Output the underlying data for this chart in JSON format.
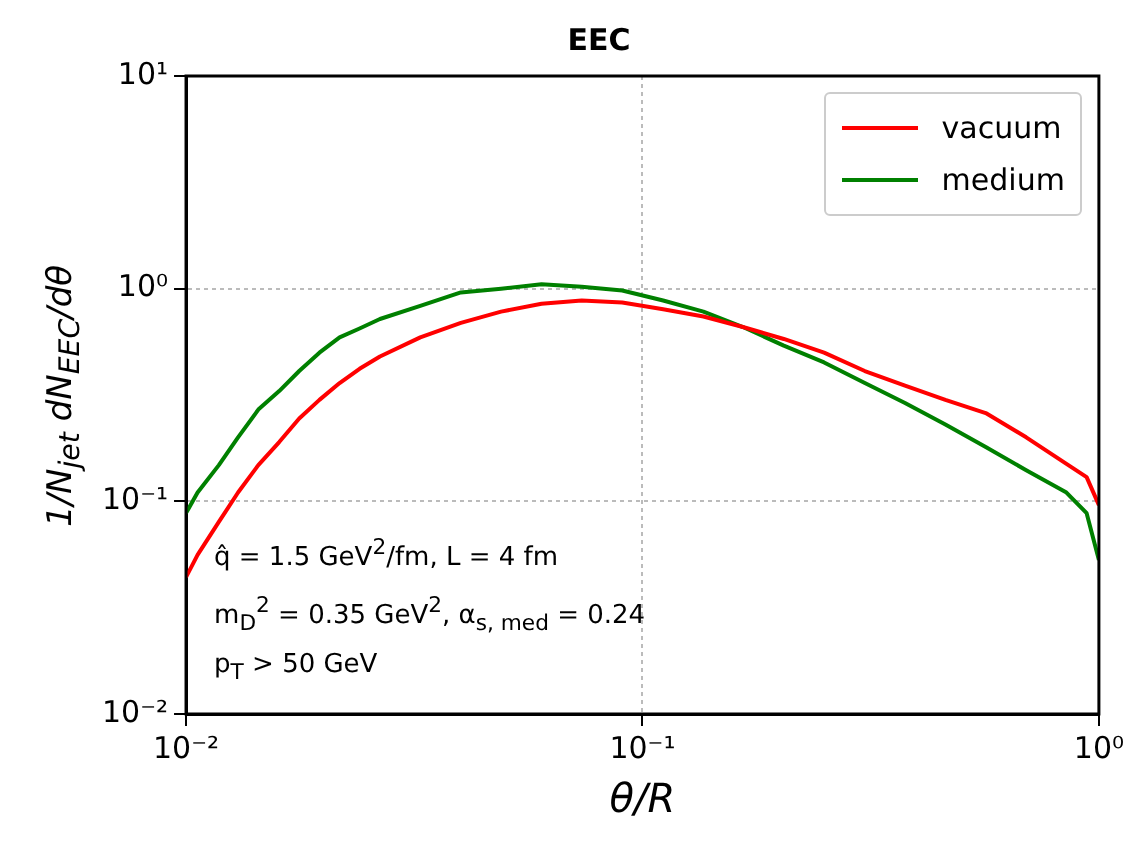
{
  "chart_data": {
    "type": "line",
    "title": "EEC",
    "xlabel": "θ/R",
    "ylabel": "1/N$_{jet}$ dN$_{EEC}$/dθ",
    "x": [
      0.01,
      0.0106,
      0.0118,
      0.013,
      0.0144,
      0.016,
      0.0177,
      0.0196,
      0.0217,
      0.024,
      0.0266,
      0.0326,
      0.04,
      0.049,
      0.0601,
      0.0736,
      0.0903,
      0.111,
      0.136,
      0.166,
      0.204,
      0.25,
      0.307,
      0.376,
      0.461,
      0.565,
      0.693,
      0.849,
      0.94,
      1.0
    ],
    "series": [
      {
        "name": "vacuum",
        "color": "#ff0000",
        "values": [
          0.044,
          0.056,
          0.08,
          0.11,
          0.148,
          0.19,
          0.245,
          0.3,
          0.36,
          0.42,
          0.48,
          0.59,
          0.69,
          0.78,
          0.85,
          0.88,
          0.86,
          0.8,
          0.74,
          0.66,
          0.58,
          0.5,
          0.41,
          0.35,
          0.3,
          0.26,
          0.2,
          0.15,
          0.13,
          0.096
        ]
      },
      {
        "name": "medium",
        "color": "#008000",
        "values": [
          0.088,
          0.11,
          0.148,
          0.2,
          0.27,
          0.33,
          0.41,
          0.5,
          0.59,
          0.65,
          0.72,
          0.83,
          0.96,
          1.0,
          1.05,
          1.02,
          0.98,
          0.88,
          0.78,
          0.66,
          0.54,
          0.45,
          0.36,
          0.29,
          0.23,
          0.18,
          0.14,
          0.11,
          0.088,
          0.053
        ]
      }
    ],
    "log": "xy",
    "xlim": [
      0.01,
      1
    ],
    "ylim": [
      0.01,
      10
    ],
    "xticks": [
      {
        "value": 0.01,
        "label": "10⁻²"
      },
      {
        "value": 0.1,
        "label": "10⁻¹"
      },
      {
        "value": 1,
        "label": "10⁰"
      }
    ],
    "yticks": [
      {
        "value": 0.01,
        "label": "10⁻²"
      },
      {
        "value": 0.1,
        "label": "10⁻¹"
      },
      {
        "value": 1,
        "label": "10⁰"
      },
      {
        "value": 10,
        "label": "10¹"
      }
    ],
    "grid": true,
    "legend": "top right",
    "marker": "none",
    "line_style": "solid",
    "annotations": [
      "q̂ = 1.5 GeV$^{2}$/fm, L = 4 fm",
      "m$_{D}$$^{2}$ = 0.35 GeV$^{2}$, α$_{s, med}$ = 0.24",
      "p$_{T}$ > 50 GeV"
    ]
  }
}
